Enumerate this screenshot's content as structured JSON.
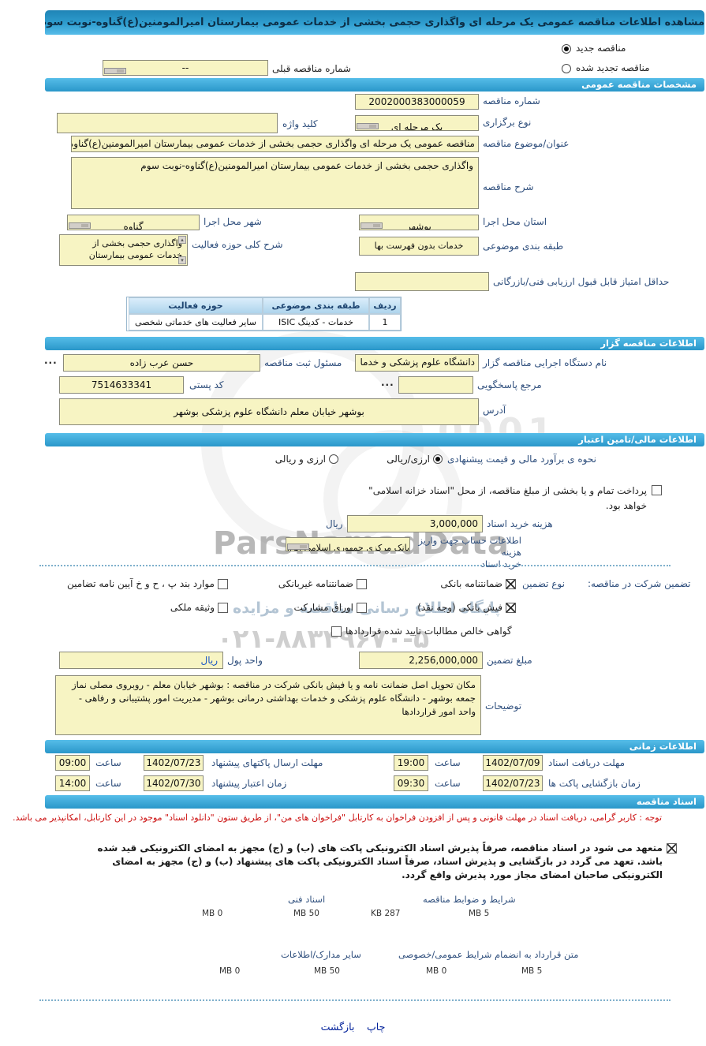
{
  "window_title": "مشاهده اطلاعات مناقصه عمومی یک مرحله ای واگذاری حجمی بخشی از خدمات عمومی بیمارستان امیرالمومنین(ع)گناوه-نوبت سوم",
  "tender_state": {
    "new_label": "مناقصه جدید",
    "new_checked": true,
    "renewed_label": "مناقصه تجدید شده",
    "renewed_checked": false,
    "previous_number_label": "شماره مناقصه قبلی",
    "previous_number_value": "--"
  },
  "general": {
    "header": "مشخصات مناقصه عمومی",
    "tender_number_label": "شماره مناقصه",
    "tender_number_value": "2002000383000059",
    "holding_type_label": "نوع برگزاری",
    "holding_type_value": "یک مرحله ای",
    "keyword_label": "کلید واژه",
    "keyword_value": "",
    "subject_label": "عنوان/موضوع مناقصه",
    "subject_value": "مناقصه عمومی یک مرحله ای واگذاری حجمی بخشی از خدمات عمومی بیمارستان امیرالمومنین(ع)گناوه-نوبت سوم",
    "description_label": "شرح مناقصه",
    "description_value": "واگذاری حجمی بخشی از خدمات عمومی بیمارستان امیرالمومنین(ع)گناوه-نوبت سوم",
    "province_label": "استان محل اجرا",
    "province_value": "بوشهر",
    "city_label": "شهر محل اجرا",
    "city_value": "گناوه",
    "category_label": "طبقه بندی موضوعی",
    "category_value": "خدمات بدون فهرست بها",
    "activity_label": "شرح کلی حوزه فعالیت",
    "activity_value": "واگذاری حجمی بخشی از خدمات عمومی بیمارستان",
    "min_score_label": "حداقل امتیاز قابل قبول ارزیابی فنی/بازرگانی",
    "min_score_value": "",
    "table": {
      "headers": [
        "ردیف",
        "طبقه بندی موضوعی",
        "حوزه فعالیت"
      ],
      "rows": [
        [
          "1",
          "خدمات - کدینگ ISIC",
          "سایر فعالیت های خدماتی شخصی"
        ]
      ]
    }
  },
  "agency": {
    "header": "اطلاعات مناقصه گزار",
    "name_label": "نام دستگاه اجرایی مناقصه گزار",
    "name_value": "دانشگاه علوم پزشکی و خدما",
    "registrar_label": "مسئول ثبت مناقصه",
    "registrar_value": "حسن عرب زاده",
    "registrar_more": "...",
    "responder_label": "مرجع پاسخگویی",
    "responder_value": "",
    "responder_more": "...",
    "postal_code_label": "کد پستی",
    "postal_code_value": "7514633341",
    "address_label": "آدرس",
    "address_value": "بوشهر خیابان معلم دانشگاه علوم پزشکی بوشهر"
  },
  "financial": {
    "header": "اطلاعات مالی/تامین اعتبار",
    "estimate_label": "نحوه ی برآورد مالی و قیمت پیشنهادی",
    "rial_option": "ارزی/ریالی",
    "rial_checked": true,
    "currency_option": "ارزی و ریالی",
    "currency_checked": false,
    "treasury_note": "پرداخت تمام و یا بخشی از مبلغ مناقصه، از محل \"اسناد خزانه اسلامی\" خواهد بود.",
    "treasury_checked": false,
    "doc_fee_label": "هزینه خرید اسناد",
    "doc_fee_value": "3,000,000",
    "rial_unit": "ریال",
    "account_label_line1": "اطلاعات حساب جهت واریز هزینه",
    "account_label_line2": "خرید اسناد",
    "account_value": "بانک مرکزی جمهوری اسلامی ایران"
  },
  "guarantee": {
    "intro": "تضمین شرکت در مناقصه:",
    "type_label": "نوع تضمین",
    "options": [
      {
        "label": "ضمانتنامه بانکی",
        "checked": true
      },
      {
        "label": "ضمانتنامه غیربانکی",
        "checked": false
      },
      {
        "label": "موارد بند پ ، ح و خ آیین نامه تضامین",
        "checked": false
      },
      {
        "label": "فیش بانکی (وجه نقد)",
        "checked": true
      },
      {
        "label": "اوراق مشارکت",
        "checked": false
      },
      {
        "label": "وثیقه ملکی",
        "checked": false
      },
      {
        "label": "گواهی خالص مطالبات تایید شده قراردادها",
        "checked": false
      }
    ],
    "amount_label": "مبلغ تضمین",
    "amount_value": "2,256,000,000",
    "currency_label": "واحد پول",
    "currency_value": "ریال",
    "notes_label": "توضیحات",
    "notes_value": "مکان تحویل اصل ضمانت نامه و یا فیش بانکی شرکت در مناقصه : بوشهر خیابان معلم - روبروی مصلی نماز جمعه بوشهر - دانشگاه علوم پزشکی و خدمات بهداشتی درمانی بوشهر - مدیریت امور پشتیبانی و رفاهی - واحد امور قراردادها"
  },
  "timing": {
    "header": "اطلاعات زمانی",
    "hour_label": "ساعت",
    "rows": [
      {
        "label": "مهلت دریافت اسناد",
        "date": "1402/07/09",
        "time": "19:00"
      },
      {
        "label": "مهلت ارسال پاکتهای پیشنهاد",
        "date": "1402/07/23",
        "time": "09:00"
      },
      {
        "label": "زمان بازگشایی پاکت ها",
        "date": "1402/07/23",
        "time": "09:30"
      },
      {
        "label": "زمان اعتبار پیشنهاد",
        "date": "1402/07/30",
        "time": "14:00"
      }
    ]
  },
  "documents": {
    "header": "اسناد مناقصه",
    "notice": "توجه : کاربر گرامی، دریافت اسناد در مهلت قانونی و پس از افزودن فراخوان به کارتابل \"فراخوان های من\"، از طریق ستون \"دانلود اسناد\" موجود در این کارتابل، امکانپذیر می باشد.",
    "commitment": "متعهد می شود در اسناد مناقصه، صرفاً پذیرش اسناد الکترونیکی پاکت های (ب) و (ج) مجهز به امضای الکترونیکی قید شده باشد. تعهد می گردد در بازگشایی و پذیرش اسناد، صرفاً اسناد الکترونیکی پاکت های پیشنهاد (ب) و (ج) مجهز به امضای الکترونیکی صاحبان امضای مجاز مورد پذیرش واقع گردد.",
    "commitment_checked": true,
    "uploads": [
      {
        "label": "شرایط و ضوابط مناقصه",
        "current": "287 KB",
        "max": "5 MB",
        "fill_percent": 8
      },
      {
        "label": "اسناد فنی",
        "current": "0 MB",
        "max": "50 MB",
        "fill_percent": 0
      },
      {
        "label": "متن قرارداد به انضمام شرایط عمومی/خصوصی",
        "current": "0 MB",
        "max": "5 MB",
        "fill_percent": 0
      },
      {
        "label": "سایر مدارک/اطلاعات",
        "current": "0 MB",
        "max": "50 MB",
        "fill_percent": 0
      }
    ]
  },
  "footer": {
    "print_label": "چاپ",
    "back_label": "بازگشت"
  },
  "watermark": {
    "brand": "ParsNamadData",
    "digits": "0001",
    "line": "پایگاه اطلاع رسانی مناقصه و مزایده",
    "phone": "۰۲۱-۸۸۳۴۹۶۷۰-۵"
  },
  "colors": {
    "header_blue": "#2e9fd4",
    "field_bg": "#f7f4c3",
    "notice_red": "#cc1111",
    "progress_green": "#8cba41",
    "link_navy": "#00209a"
  }
}
